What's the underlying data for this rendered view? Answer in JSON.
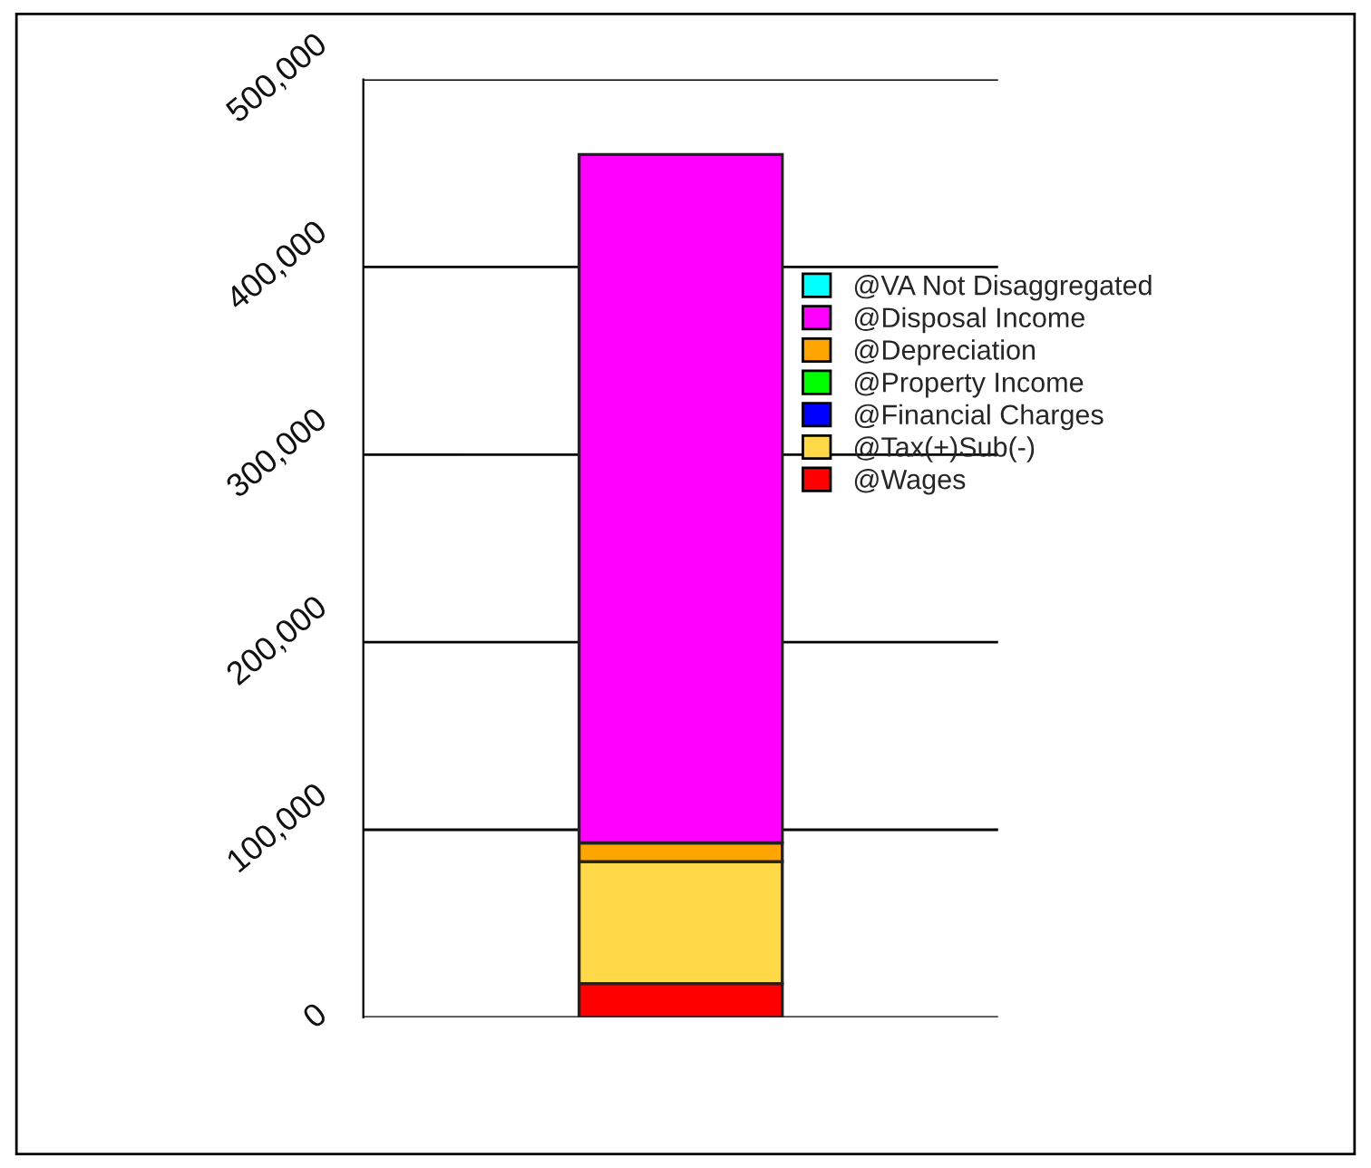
{
  "chart_data": {
    "type": "bar",
    "stacked": true,
    "categories": [
      null
    ],
    "series": [
      {
        "name": "@Wages",
        "color": "#ff0000",
        "values": [
          18000
        ]
      },
      {
        "name": "@Tax(+)Sub(-)",
        "color": "#ffd948",
        "values": [
          65000
        ]
      },
      {
        "name": "@Financial Charges",
        "color": "#0000ff",
        "values": [
          0
        ]
      },
      {
        "name": "@Property Income",
        "color": "#00ff00",
        "values": [
          0
        ]
      },
      {
        "name": "@Depreciation",
        "color": "#ffa500",
        "values": [
          10000
        ]
      },
      {
        "name": "@Disposal Income",
        "color": "#ff00ff",
        "values": [
          367000
        ]
      },
      {
        "name": "@VA Not Disaggregated",
        "color": "#00ffff",
        "values": [
          0
        ]
      }
    ],
    "ylim": [
      0,
      500000
    ],
    "yticks": [
      {
        "value": 0,
        "label": "0"
      },
      {
        "value": 100000,
        "label": "100,000"
      },
      {
        "value": 200000,
        "label": "200,000"
      },
      {
        "value": 300000,
        "label": "300,000"
      },
      {
        "value": 400000,
        "label": "400,000"
      },
      {
        "value": 500000,
        "label": "500,000"
      }
    ],
    "grid": "y",
    "legend": "right"
  }
}
